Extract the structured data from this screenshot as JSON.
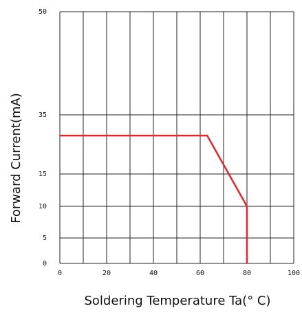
{
  "chart_data": {
    "type": "line",
    "xlabel": "Soldering Temperature Ta(°  C)",
    "ylabel": "Forward Current(mA)",
    "x": [
      0,
      63,
      80,
      80
    ],
    "series": [
      {
        "color": "#e8252b",
        "values": [
          28,
          28,
          10,
          0
        ]
      }
    ],
    "xlim": [
      0,
      100
    ],
    "xticks": [
      0,
      20,
      40,
      60,
      80,
      100
    ],
    "xminorticks": [
      10,
      30,
      50,
      70,
      90
    ],
    "ylim": [
      0,
      50
    ],
    "yticks": [
      0,
      5,
      10,
      15,
      35,
      50
    ],
    "grid": true
  }
}
